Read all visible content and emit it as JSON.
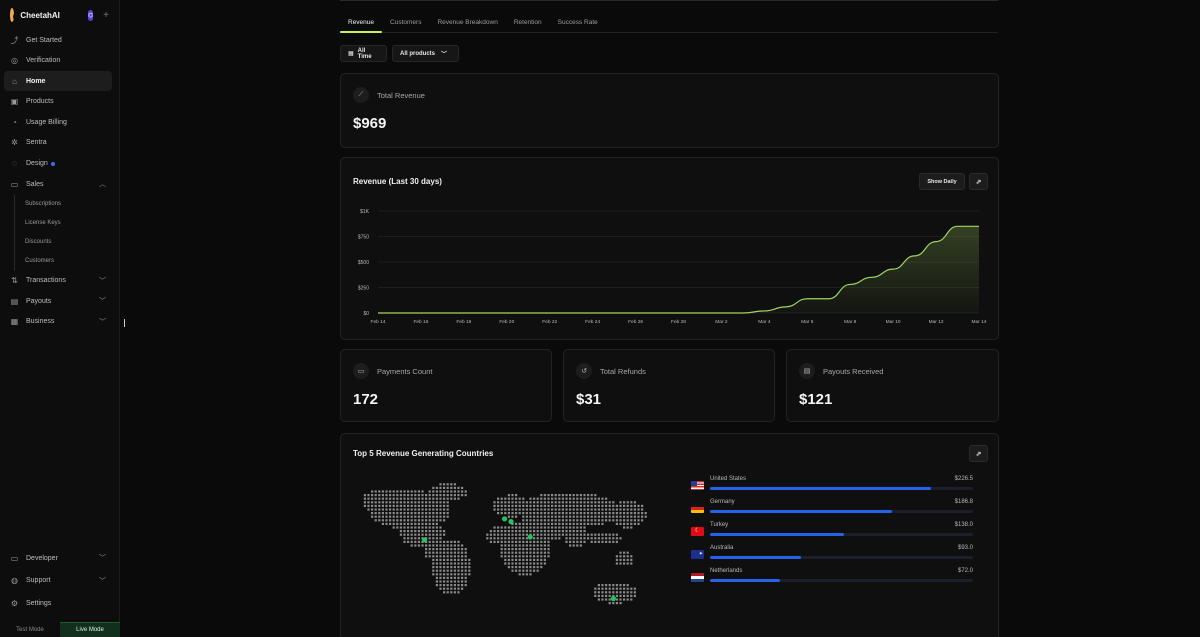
{
  "app": {
    "name": "CheetahAI",
    "badge": "⌬"
  },
  "sidebar": {
    "items": [
      {
        "label": "Get Started",
        "icon": "rocket-icon",
        "glyph": "⤴"
      },
      {
        "label": "Verification",
        "icon": "badge-check-icon",
        "glyph": "◎"
      },
      {
        "label": "Home",
        "icon": "home-icon",
        "glyph": "⌂",
        "active": true
      },
      {
        "label": "Products",
        "icon": "box-icon",
        "glyph": "▣"
      },
      {
        "label": "Usage Billing",
        "icon": "meter-icon",
        "glyph": "◔"
      },
      {
        "label": "Sentra",
        "icon": "sparkle-icon",
        "glyph": "✲"
      },
      {
        "label": "Design",
        "icon": "palette-icon",
        "glyph": "◌"
      },
      {
        "label": "Sales",
        "icon": "wallet-icon",
        "glyph": "▭"
      }
    ],
    "sales_sub": [
      "Subscriptions",
      "License Keys",
      "Discounts",
      "Customers"
    ],
    "items_after": [
      {
        "label": "Transactions",
        "icon": "arrows-icon",
        "glyph": "⇅"
      },
      {
        "label": "Payouts",
        "icon": "folder-icon",
        "glyph": "▤"
      },
      {
        "label": "Business",
        "icon": "briefcase-icon",
        "glyph": "▦"
      }
    ],
    "bottom": [
      {
        "label": "Developer",
        "icon": "code-icon",
        "glyph": "▭"
      },
      {
        "label": "Support",
        "icon": "headset-icon",
        "glyph": "◍"
      },
      {
        "label": "Settings",
        "icon": "gear-icon",
        "glyph": "⚙"
      }
    ],
    "modes": {
      "test": "Test Mode",
      "live": "Live Mode"
    }
  },
  "tabs": [
    "Revenue",
    "Customers",
    "Revenue Breakdown",
    "Retention",
    "Success Rate"
  ],
  "filters": {
    "time": "All Time",
    "products": "All products"
  },
  "total_revenue": {
    "label": "Total Revenue",
    "value": "$969"
  },
  "revenue_chart": {
    "title": "Revenue (Last 30 days)",
    "toggle_label": "Show Daily"
  },
  "chart_data": {
    "type": "area",
    "title": "Revenue (Last 30 days)",
    "x": [
      "Feb 14",
      "Feb 15",
      "Feb 16",
      "Feb 17",
      "Feb 18",
      "Feb 19",
      "Feb 20",
      "Feb 21",
      "Feb 22",
      "Feb 23",
      "Feb 24",
      "Feb 25",
      "Feb 26",
      "Feb 27",
      "Feb 28",
      "Mar 1",
      "Mar 2",
      "Mar 3",
      "Mar 4",
      "Mar 5",
      "Mar 6",
      "Mar 7",
      "Mar 8",
      "Mar 9",
      "Mar 10",
      "Mar 11",
      "Mar 12",
      "Mar 13",
      "Mar 14"
    ],
    "values": [
      0,
      0,
      0,
      0,
      0,
      0,
      0,
      0,
      0,
      0,
      0,
      0,
      0,
      0,
      0,
      0,
      0,
      0,
      20,
      60,
      140,
      140,
      280,
      350,
      430,
      560,
      700,
      850,
      850
    ],
    "tick_labels": [
      "Feb 14",
      "Feb 16",
      "Feb 18",
      "Feb 20",
      "Feb 22",
      "Feb 24",
      "Feb 26",
      "Feb 28",
      "Mar 2",
      "Mar 4",
      "Mar 6",
      "Mar 8",
      "Mar 10",
      "Mar 12",
      "Mar 14"
    ],
    "y_ticks": [
      "$0",
      "$250",
      "$500",
      "$750",
      "$1K"
    ],
    "ylim": [
      0,
      1000
    ],
    "grid": true,
    "color": "#a3d45f"
  },
  "stats": [
    {
      "label": "Payments Count",
      "value": "172",
      "icon": "card-icon",
      "glyph": "▭"
    },
    {
      "label": "Total Refunds",
      "value": "$31",
      "icon": "refund-icon",
      "glyph": "↺"
    },
    {
      "label": "Payouts Received",
      "value": "$121",
      "icon": "wallet-icon",
      "glyph": "▤"
    }
  ],
  "countries": {
    "title": "Top 5 Revenue Generating Countries",
    "items": [
      {
        "name": "United States",
        "value": "$226.5",
        "amount": 226.5,
        "flag": "us"
      },
      {
        "name": "Germany",
        "value": "$186.8",
        "amount": 186.8,
        "flag": "de"
      },
      {
        "name": "Turkey",
        "value": "$138.0",
        "amount": 138.0,
        "flag": "tr"
      },
      {
        "name": "Australia",
        "value": "$93.0",
        "amount": 93.0,
        "flag": "au"
      },
      {
        "name": "Netherlands",
        "value": "$72.0",
        "amount": 72.0,
        "flag": "nl"
      }
    ],
    "max_amount": 270
  },
  "colors": {
    "accent": "#c8f25a",
    "bar": "#2563eb",
    "marker": "#22c55e"
  }
}
